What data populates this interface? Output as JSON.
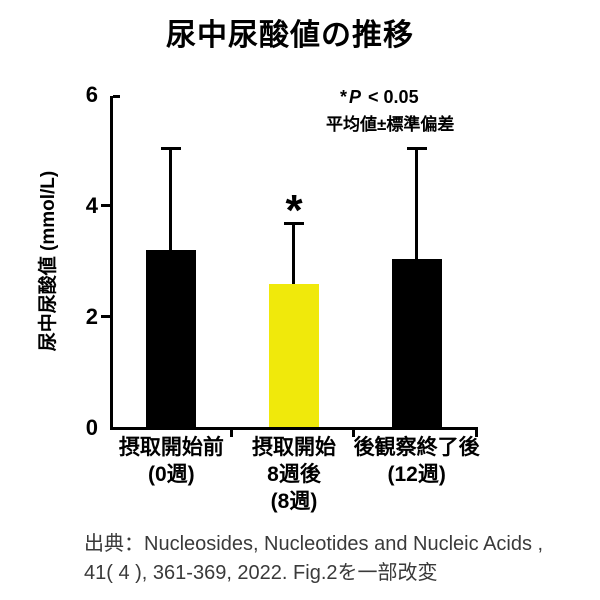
{
  "title": "尿中尿酸値の推移",
  "annotation": {
    "sig_star": "*",
    "sig_p": "P",
    "sig_rest": " < 0.05",
    "mean_sd_note": "平均値±標準偏差"
  },
  "citation": {
    "line1": "出典：Nucleosides, Nucleotides and Nucleic Acids ,",
    "line2": "41( 4 ), 361-369, 2022. Fig.2を一部改変"
  },
  "chart_data": {
    "type": "bar",
    "title": "尿中尿酸値の推移",
    "xlabel": "",
    "ylabel": "尿中尿酸値 (mmol/L)",
    "ylim": [
      0,
      6
    ],
    "yticks": [
      0,
      2,
      4,
      6
    ],
    "grid": false,
    "legend_position": "none",
    "error_bars": "upper_sd_only",
    "significance_note": "* P < 0.05",
    "mean_sd_note": "平均値±標準偏差",
    "categories": [
      "摂取開始前 (0週)",
      "摂取開始 8週後 (8週)",
      "後観察終了後 (12週)"
    ],
    "bars": [
      {
        "label_lines": [
          "摂取開始前",
          "(0週)"
        ],
        "mean": 3.2,
        "upper": 5.05,
        "sd": 1.85,
        "color": "#000000",
        "significance": ""
      },
      {
        "label_lines": [
          "摂取開始",
          "8週後",
          "(8週)"
        ],
        "mean": 2.6,
        "upper": 3.7,
        "sd": 1.1,
        "color": "#F0E90B",
        "significance": "*"
      },
      {
        "label_lines": [
          "後観察終了後",
          "(12週)"
        ],
        "mean": 3.05,
        "upper": 5.05,
        "sd": 2.0,
        "color": "#000000",
        "significance": ""
      }
    ]
  }
}
